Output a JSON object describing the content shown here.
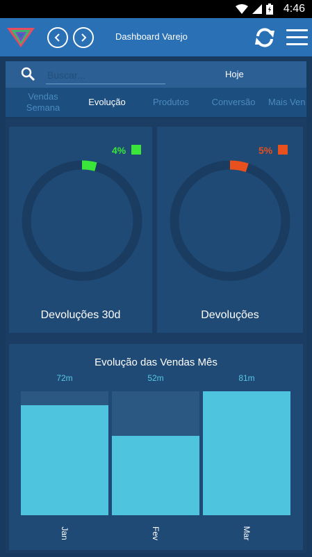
{
  "status_bar": {
    "time": "4:46"
  },
  "app_bar": {
    "title": "Dashboard Varejo"
  },
  "search": {
    "placeholder": "Buscar...",
    "period": "Hoje"
  },
  "tabs": [
    {
      "label": "Vendas Semana",
      "active": false
    },
    {
      "label": "Evolução",
      "active": true
    },
    {
      "label": "Produtos",
      "active": false
    },
    {
      "label": "Conversão",
      "active": false
    },
    {
      "label": "Mais Ven",
      "active": false
    }
  ],
  "gauges": [
    {
      "label": "Devoluções 30d",
      "percent_text": "4%",
      "value": 4,
      "color": "#39e639"
    },
    {
      "label": "Devoluções",
      "percent_text": "5%",
      "value": 5,
      "color": "#e8501e"
    }
  ],
  "chart_data": {
    "type": "bar",
    "title": "Evolução das Vendas Mês",
    "categories": [
      "Jan",
      "Fev",
      "Mar"
    ],
    "values": [
      72,
      52,
      81
    ],
    "value_labels": [
      "72m",
      "52m",
      "81m"
    ],
    "ylim": [
      0,
      81
    ],
    "bar_color": "#4fc4de",
    "track_color": "#1f4a75"
  }
}
